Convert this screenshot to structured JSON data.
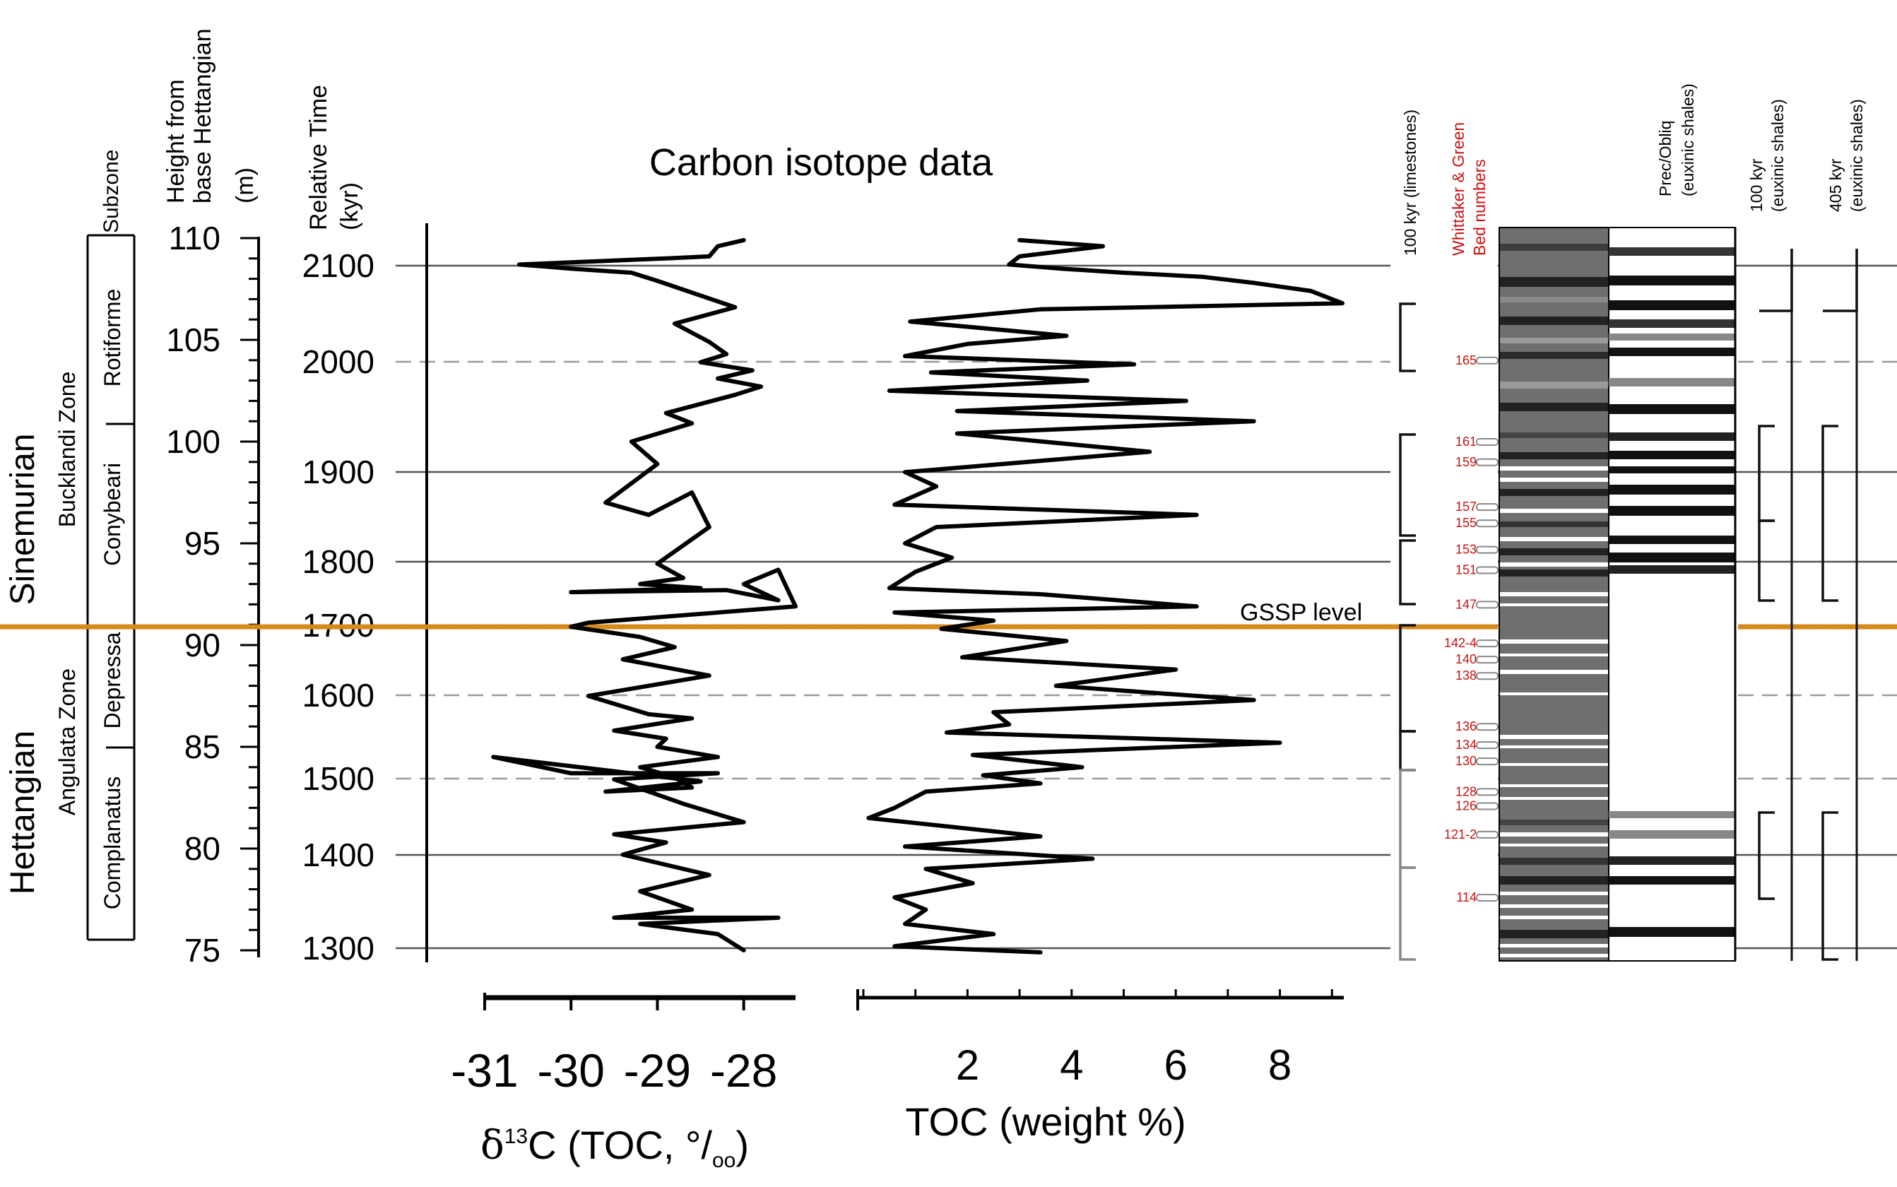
{
  "chart_data": {
    "type": "line",
    "title": "Carbon isotope data",
    "left_columns": {
      "subzone_header": "Subzone",
      "height_header": [
        "Height from",
        "base Hettangian",
        "(m)"
      ],
      "time_header": [
        "Relative Time",
        "(kyr)"
      ],
      "stages": [
        "Sinemurian",
        "Hettangian"
      ],
      "zones": [
        "Bucklandi Zone",
        "Angulata Zone"
      ],
      "subzones": [
        "Rotiforme",
        "Conybeari",
        "Depressa",
        "Complanatus"
      ]
    },
    "height_axis": {
      "ticks": [
        110,
        105,
        100,
        95,
        90,
        85,
        80,
        75
      ],
      "ylim": [
        75,
        110
      ],
      "unit": "m"
    },
    "time_axis": {
      "ticks": [
        2100,
        2000,
        1900,
        1800,
        1700,
        1600,
        1500,
        1400,
        1300
      ],
      "unit": "kyr"
    },
    "d13c": {
      "xlabel": "δ13C (TOC, ‰)",
      "xlabel_main": "δ",
      "xlabel_sup": "13",
      "xlabel_rest": "C (TOC, ",
      "xlabel_unit": "°/",
      "xlabel_unit_sub": "oo",
      "xlabel_close": ")",
      "xticks": [
        "-31",
        "-30",
        "-29",
        "-28"
      ],
      "xlim": [
        -31.0,
        -27.4
      ],
      "x": [
        -28.0,
        -28.3,
        -28.4,
        -28.9,
        -29.5,
        -30.6,
        -30.0,
        -29.3,
        -29.0,
        -28.1,
        -28.8,
        -28.4,
        -28.2,
        -28.5,
        -27.9,
        -28.3,
        -27.8,
        -28.1,
        -28.9,
        -28.6,
        -29.3,
        -29.0,
        -29.6,
        -29.1,
        -28.6,
        -28.4,
        -29.0,
        -28.7,
        -29.2,
        -28.5,
        -30.0,
        -28.2,
        -27.6,
        -28.0,
        -27.6,
        -27.4,
        -29.8,
        -30.0,
        -29.2,
        -28.8,
        -29.4,
        -28.4,
        -29.8,
        -29.1,
        -28.6,
        -29.5,
        -28.9,
        -29.0,
        -28.3,
        -29.2,
        -28.8,
        -28.6,
        -29.6,
        -28.5,
        -30.9,
        -30.0,
        -28.3,
        -29.5,
        -28.7,
        -28.0,
        -29.5,
        -28.9,
        -29.4,
        -28.4,
        -29.2,
        -28.6,
        -29.5,
        -27.6,
        -29.2,
        -28.3,
        -28.0
      ],
      "y": [
        109.9,
        109.6,
        109.1,
        109.0,
        108.9,
        108.7,
        108.5,
        108.3,
        107.9,
        106.6,
        105.8,
        104.9,
        104.3,
        103.9,
        103.5,
        103.1,
        102.7,
        102.3,
        101.4,
        100.9,
        100.0,
        98.9,
        97.0,
        96.4,
        97.5,
        95.8,
        94.0,
        93.3,
        93.0,
        92.8,
        92.6,
        92.7,
        92.2,
        93.0,
        93.7,
        91.9,
        91.1,
        90.9,
        90.4,
        89.9,
        89.3,
        88.5,
        87.5,
        86.6,
        86.4,
        85.8,
        85.4,
        85.0,
        84.5,
        84.0,
        83.5,
        83.0,
        82.8,
        83.3,
        84.5,
        83.7,
        83.7,
        83.4,
        82.2,
        81.3,
        80.7,
        80.3,
        79.7,
        78.7,
        77.9,
        77.0,
        76.6,
        76.6,
        76.3,
        75.8,
        75.0
      ]
    },
    "toc": {
      "xlabel": "TOC (weight %)",
      "xticks": [
        "2",
        "4",
        "6",
        "8"
      ],
      "xlim": [
        0,
        9.2
      ],
      "x": [
        3.0,
        4.6,
        3.0,
        2.8,
        3.8,
        5.0,
        6.5,
        7.5,
        8.6,
        9.2,
        3.4,
        0.9,
        3.9,
        2.0,
        0.8,
        5.2,
        1.3,
        4.3,
        0.5,
        6.2,
        1.8,
        7.5,
        1.8,
        5.5,
        0.8,
        1.4,
        0.6,
        6.4,
        1.4,
        0.8,
        1.7,
        1.0,
        0.5,
        3.4,
        6.4,
        0.6,
        2.5,
        1.5,
        3.9,
        1.9,
        6.0,
        3.7,
        7.5,
        2.5,
        2.8,
        1.6,
        8.0,
        2.1,
        4.2,
        2.3,
        3.4,
        1.2,
        0.6,
        0.1,
        3.4,
        0.8,
        4.4,
        1.2,
        2.1,
        0.6,
        1.2,
        0.8,
        2.5,
        0.6,
        3.4
      ],
      "y": [
        109.9,
        109.6,
        109.1,
        108.7,
        108.5,
        108.3,
        108.1,
        107.8,
        107.4,
        106.8,
        106.5,
        105.9,
        105.2,
        104.8,
        104.2,
        103.8,
        103.4,
        103.0,
        102.5,
        102.0,
        101.5,
        101.0,
        100.4,
        99.5,
        98.5,
        97.8,
        96.9,
        96.4,
        95.8,
        95.0,
        94.3,
        93.6,
        92.8,
        92.5,
        91.9,
        91.6,
        91.2,
        90.8,
        90.2,
        89.4,
        88.8,
        88.0,
        87.3,
        86.7,
        86.1,
        85.7,
        85.2,
        84.6,
        84.0,
        83.6,
        83.2,
        82.8,
        82.0,
        81.5,
        80.6,
        80.1,
        79.5,
        79.0,
        78.3,
        77.6,
        77.0,
        76.3,
        75.8,
        75.2,
        74.9
      ]
    },
    "right_columns": {
      "col_100kyr_limestones": "100 kyr (limestones)",
      "col_beds": [
        "Whittaker & Green",
        "Bed numbers"
      ],
      "col_precobliq": [
        "Prec/Obliq",
        "(euxinic shales)"
      ],
      "col_100kyr_shales": [
        "100 kyr",
        "(euxinic shales)"
      ],
      "col_405kyr": [
        "405 kyr",
        "(euxinic shales)"
      ],
      "bed_numbers": [
        {
          "label": "165",
          "h": 104.0
        },
        {
          "label": "161",
          "h": 100.0
        },
        {
          "label": "159",
          "h": 99.0
        },
        {
          "label": "157",
          "h": 96.8
        },
        {
          "label": "155",
          "h": 96.0
        },
        {
          "label": "153",
          "h": 94.7
        },
        {
          "label": "151",
          "h": 93.7
        },
        {
          "label": "147",
          "h": 92.0
        },
        {
          "label": "142-4",
          "h": 90.1
        },
        {
          "label": "140",
          "h": 89.3
        },
        {
          "label": "138",
          "h": 88.5
        },
        {
          "label": "136",
          "h": 86.0
        },
        {
          "label": "134",
          "h": 85.1
        },
        {
          "label": "130",
          "h": 84.3
        },
        {
          "label": "128",
          "h": 82.8
        },
        {
          "label": "126",
          "h": 82.1
        },
        {
          "label": "121-2",
          "h": 80.7
        },
        {
          "label": "114",
          "h": 77.6
        }
      ]
    },
    "gssp_label": "GSSP level",
    "gssp_height": 90.9,
    "colors": {
      "gssp": "#d68a1c",
      "bed_labels": "#cc1111",
      "gssp_text": "#8b5a2b"
    }
  }
}
